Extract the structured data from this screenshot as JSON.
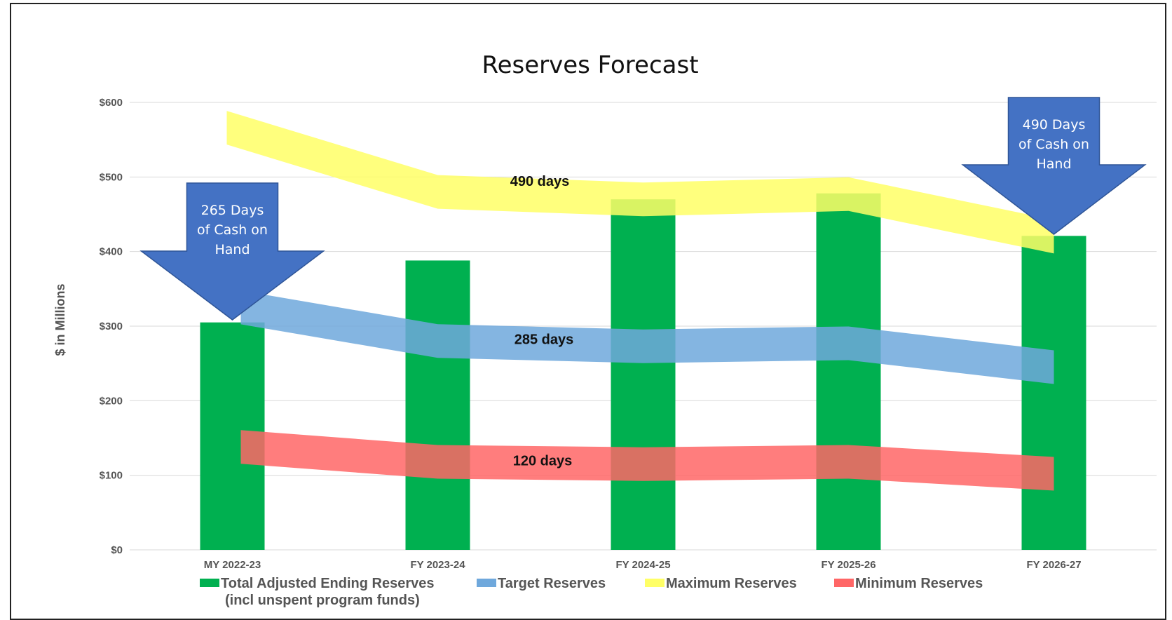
{
  "chart_data": {
    "type": "bar",
    "title": "Reserves Forecast",
    "ylabel": "$ in Millions",
    "xlabel": "",
    "ylim": [
      0,
      600
    ],
    "y_ticks": [
      "$0",
      "$100",
      "$200",
      "$300",
      "$400",
      "$500",
      "$600"
    ],
    "y_tick_values": [
      0,
      100,
      200,
      300,
      400,
      500,
      600
    ],
    "categories": [
      "MY 2022-23",
      "FY 2023-24",
      "FY 2024-25",
      "FY 2025-26",
      "FY 2026-27"
    ],
    "bar_series": {
      "name": "Total Adjusted Ending Reserves",
      "name_line2": "(incl unspent program funds)",
      "values": [
        305,
        388,
        470,
        478,
        421
      ],
      "color": "#00b050",
      "overlap_color": "#7ed32a"
    },
    "bands": [
      {
        "name": "Maximum Reserves",
        "label": "490 days",
        "values": [
          566,
          480,
          470,
          477,
          420
        ],
        "color": "#ffff66"
      },
      {
        "name": "Target Reserves",
        "label": "285 days",
        "values": [
          325,
          280,
          273,
          277,
          245
        ],
        "color": "#6fa8dc"
      },
      {
        "name": "Minimum Reserves",
        "label": "120 days",
        "values": [
          138,
          118,
          115,
          118,
          102
        ],
        "color": "#ff6666"
      }
    ],
    "grid": true,
    "legend_position": "bottom",
    "annotations": [
      {
        "lines": [
          "265 Days",
          "of Cash on",
          "Hand"
        ],
        "category_index": 0,
        "color": "#4472c4"
      },
      {
        "lines": [
          "490 Days",
          "of Cash on",
          "Hand"
        ],
        "category_index": 4,
        "color": "#4472c4"
      }
    ]
  }
}
